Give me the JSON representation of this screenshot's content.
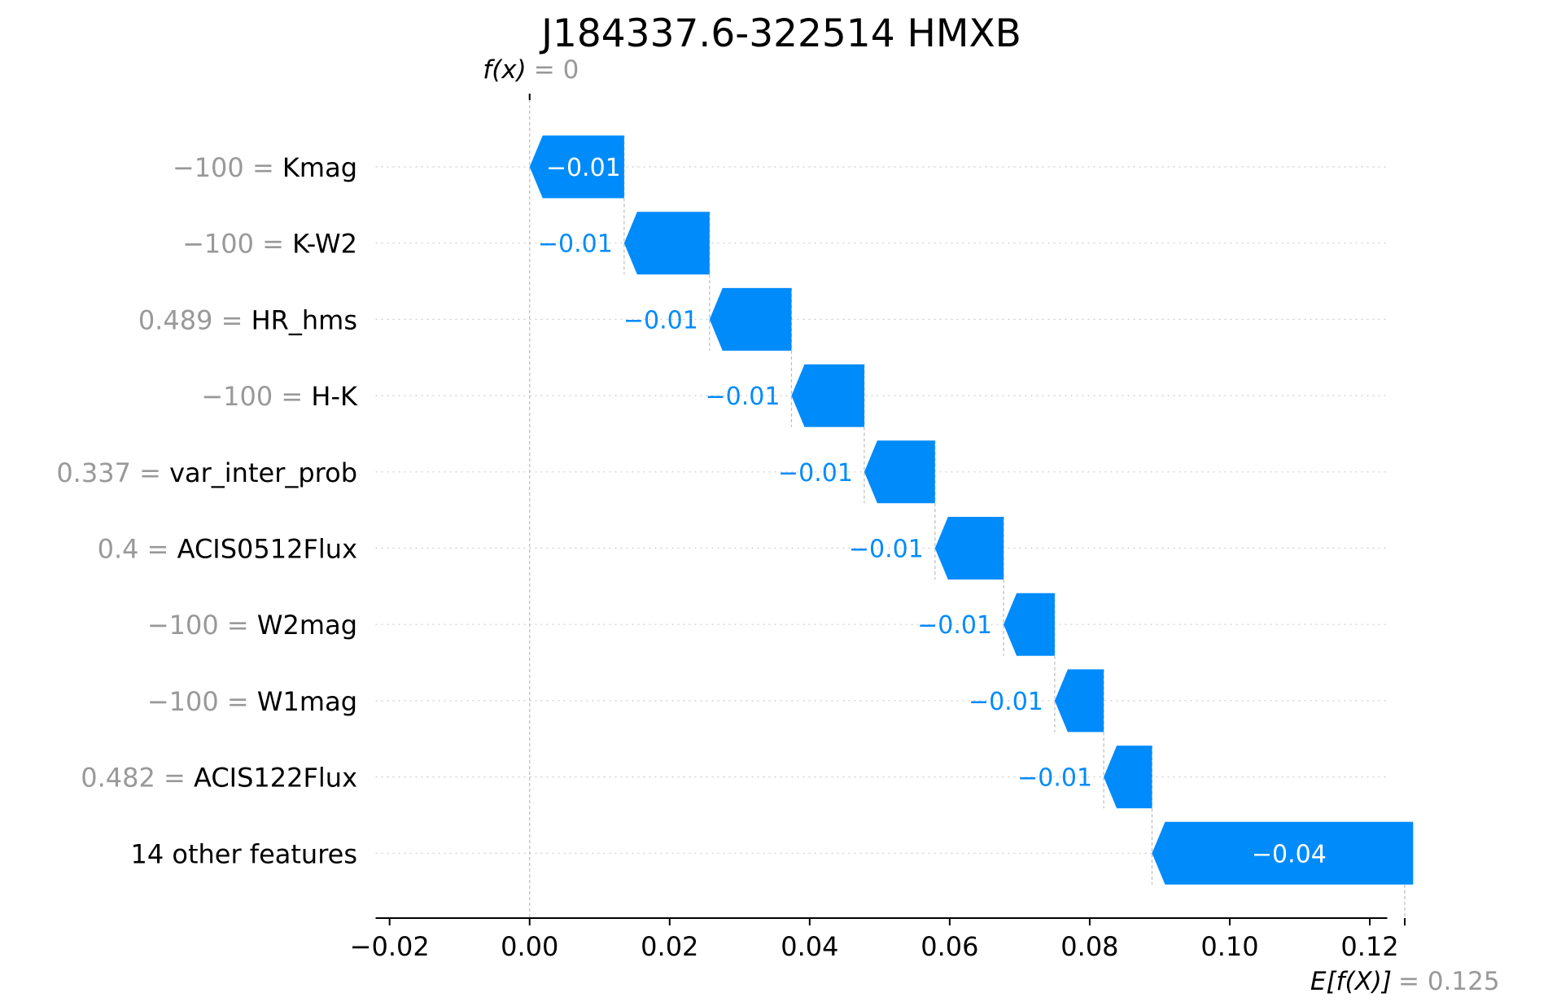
{
  "chart_data": {
    "type": "waterfall",
    "title": "J184337.6-322514 HMXB",
    "fx": {
      "label": "f(x)",
      "value_text": "= 0",
      "value": 0.0
    },
    "expected": {
      "label": "E[f(X)]",
      "value_text": "= 0.125",
      "value": 0.125
    },
    "xlim": [
      -0.022,
      0.1225
    ],
    "xticks": [
      -0.02,
      0.0,
      0.02,
      0.04,
      0.06,
      0.08,
      0.1,
      0.12
    ],
    "xtick_labels": [
      "−0.02",
      "0.00",
      "0.02",
      "0.04",
      "0.06",
      "0.08",
      "0.10",
      "0.12"
    ],
    "features": [
      {
        "value_text": "−100 =",
        "name": "Kmag",
        "shap": -0.0135,
        "shap_label": "−0.01"
      },
      {
        "value_text": "−100 =",
        "name": "K-W2",
        "shap": -0.0122,
        "shap_label": "−0.01"
      },
      {
        "value_text": "0.489 =",
        "name": "HR_hms",
        "shap": -0.0117,
        "shap_label": "−0.01"
      },
      {
        "value_text": "−100 =",
        "name": "H-K",
        "shap": -0.0104,
        "shap_label": "−0.01"
      },
      {
        "value_text": "0.337 =",
        "name": "var_inter_prob",
        "shap": -0.0101,
        "shap_label": "−0.01"
      },
      {
        "value_text": "0.4 =",
        "name": "ACIS0512Flux",
        "shap": -0.0098,
        "shap_label": "−0.01"
      },
      {
        "value_text": "−100 =",
        "name": "W2mag",
        "shap": -0.0073,
        "shap_label": "−0.01"
      },
      {
        "value_text": "−100 =",
        "name": "W1mag",
        "shap": -0.007,
        "shap_label": "−0.01"
      },
      {
        "value_text": "0.482 =",
        "name": "ACIS122Flux",
        "shap": -0.0069,
        "shap_label": "−0.01"
      },
      {
        "value_text": "",
        "name": "14 other features",
        "shap": -0.0373,
        "shap_label": "−0.04"
      }
    ],
    "colors": {
      "negative": "#008bfb",
      "grid": "#cccccc",
      "guide": "#bbbbbb",
      "muted": "#999999"
    }
  }
}
